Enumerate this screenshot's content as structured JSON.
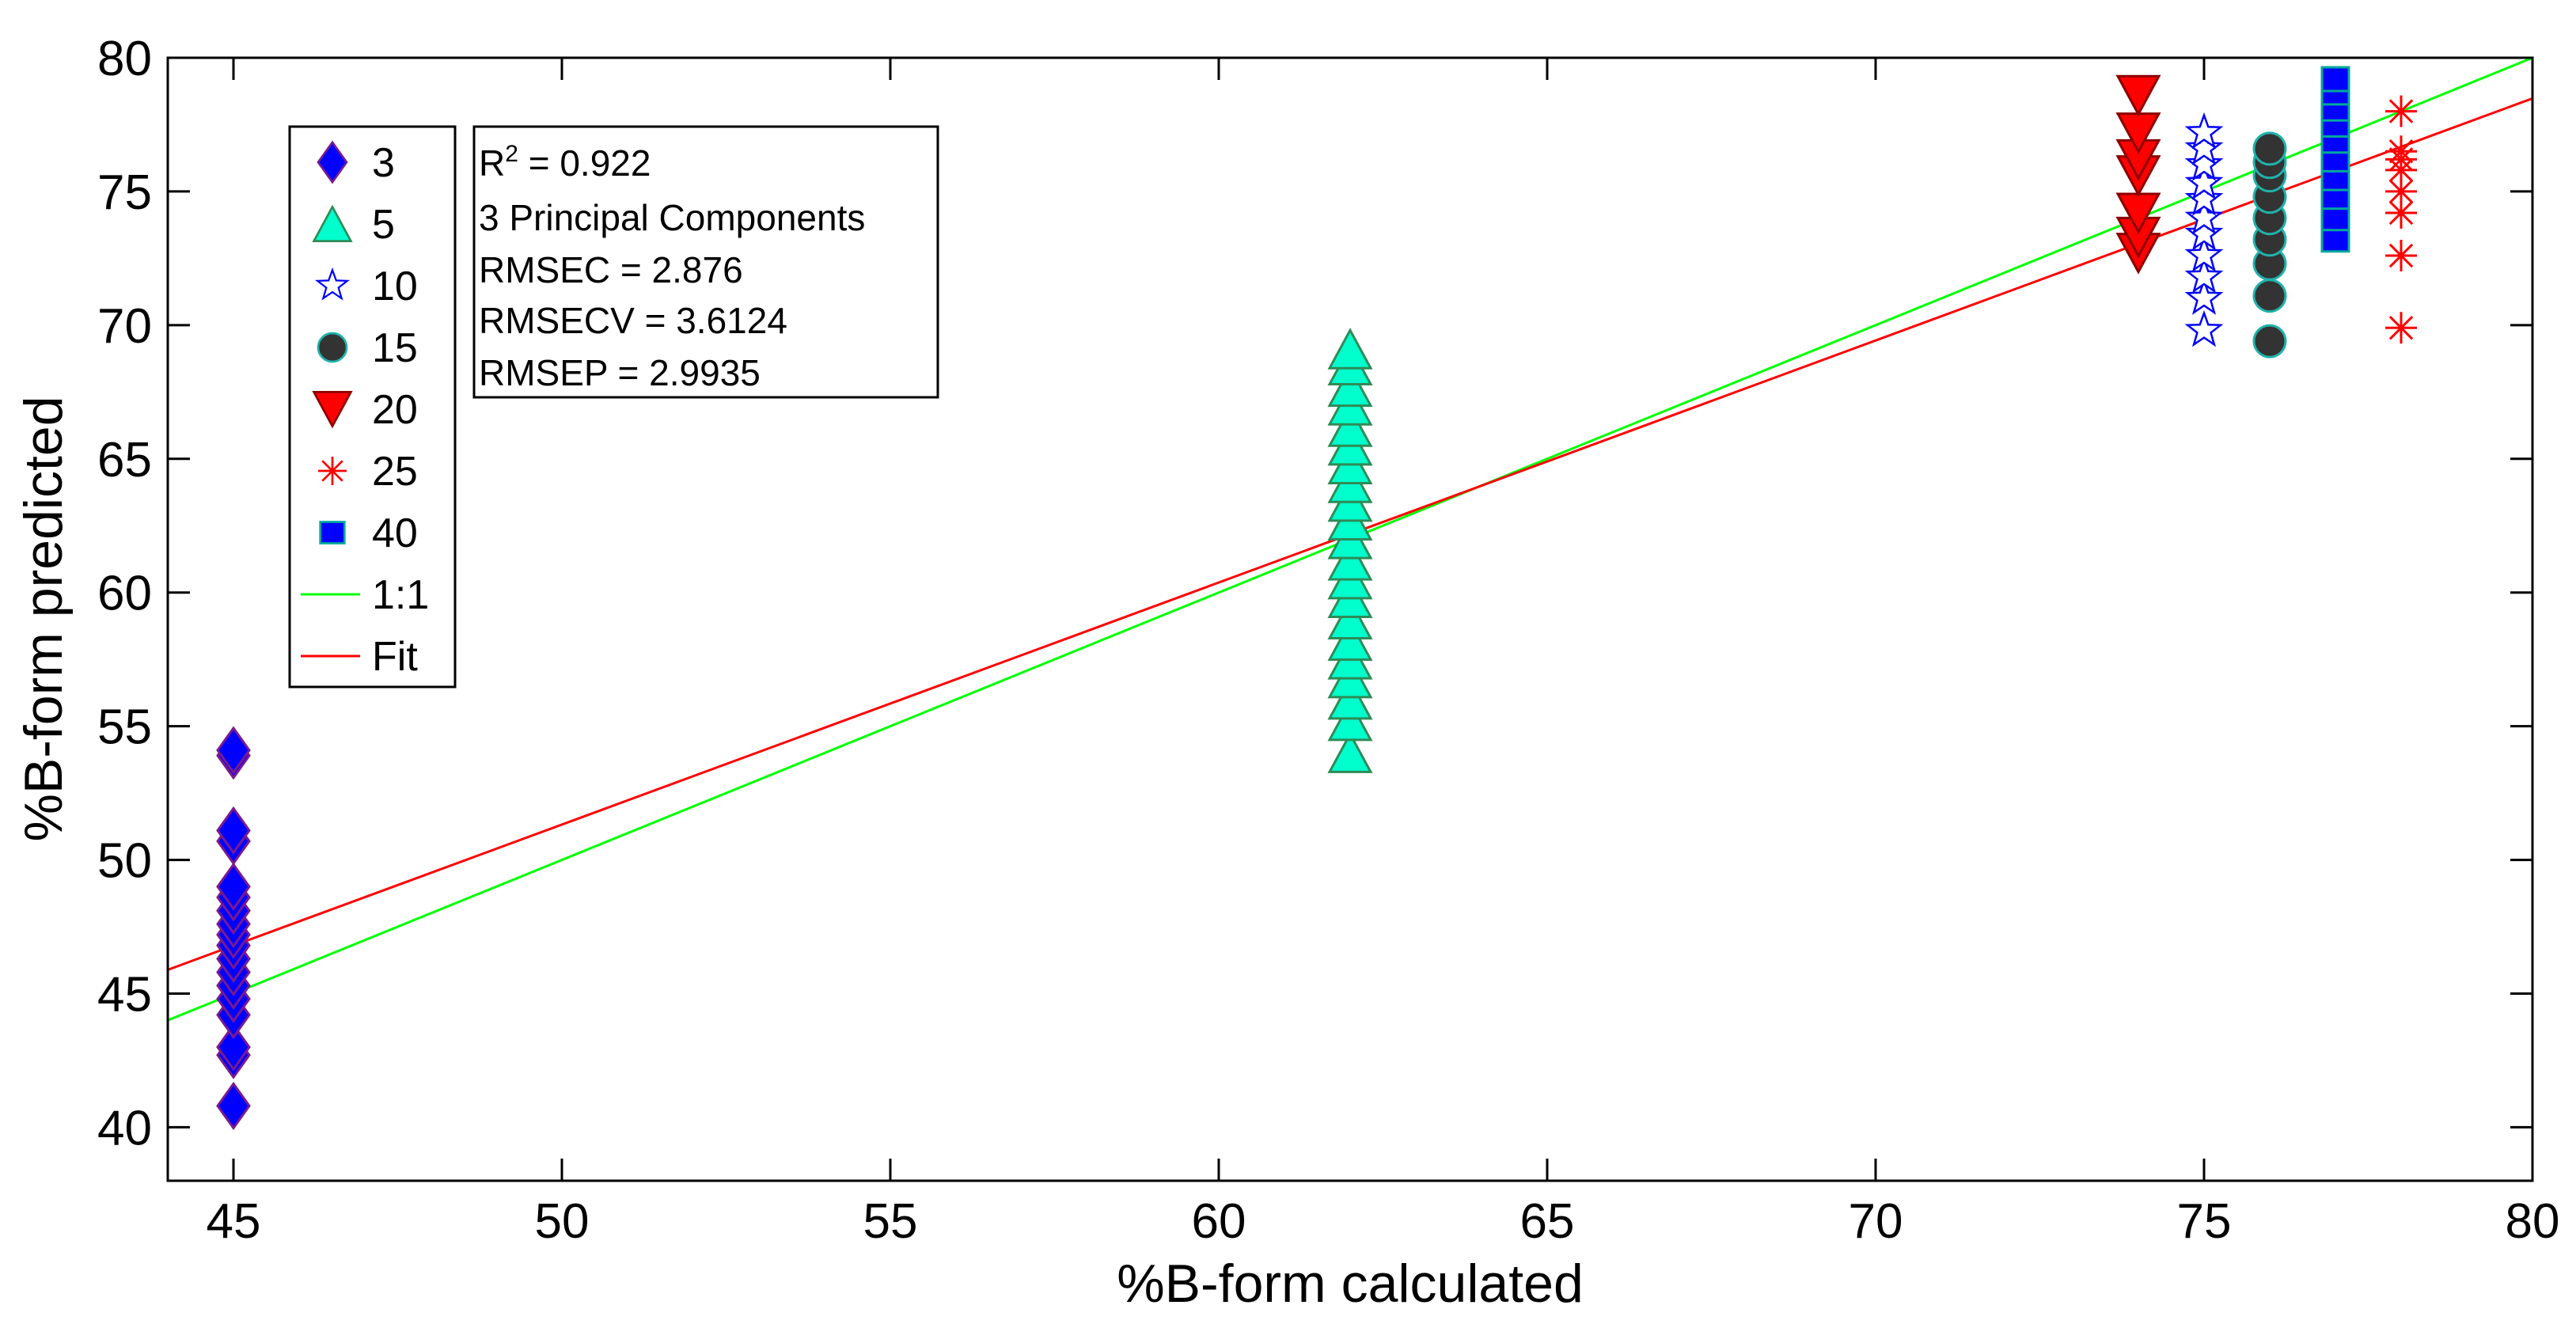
{
  "chart_data": {
    "type": "scatter",
    "title": "",
    "xlabel": "%B-form calculated",
    "ylabel": "%B-form predicted",
    "xlim": [
      44,
      80
    ],
    "ylim": [
      38,
      80
    ],
    "xticks": [
      45,
      50,
      55,
      60,
      65,
      70,
      75,
      80
    ],
    "yticks": [
      40,
      45,
      50,
      55,
      60,
      65,
      70,
      75,
      80
    ],
    "grid": false,
    "legend_position": "top-left",
    "series": [
      {
        "name": "3",
        "marker": "diamond",
        "color": "#0000ff",
        "edge": "#7a1a8f",
        "points": [
          [
            45,
            40.8
          ],
          [
            45,
            42.7
          ],
          [
            45,
            43.0
          ],
          [
            45,
            44.2
          ],
          [
            45,
            44.8
          ],
          [
            45,
            45.3
          ],
          [
            45,
            45.8
          ],
          [
            45,
            46.3
          ],
          [
            45,
            46.8
          ],
          [
            45,
            47.2
          ],
          [
            45,
            47.6
          ],
          [
            45,
            48.1
          ],
          [
            45,
            48.6
          ],
          [
            45,
            49.0
          ],
          [
            45,
            50.7
          ],
          [
            45,
            51.1
          ],
          [
            45,
            53.9
          ],
          [
            45,
            54.1
          ]
        ]
      },
      {
        "name": "5",
        "marker": "triangle-up",
        "color": "#00ffcc",
        "edge": "#2e8b57",
        "points": [
          [
            62,
            54.0
          ],
          [
            62,
            55.2
          ],
          [
            62,
            56.0
          ],
          [
            62,
            56.8
          ],
          [
            62,
            57.5
          ],
          [
            62,
            58.2
          ],
          [
            62,
            59.0
          ],
          [
            62,
            59.8
          ],
          [
            62,
            60.5
          ],
          [
            62,
            61.2
          ],
          [
            62,
            62.0
          ],
          [
            62,
            62.7
          ],
          [
            62,
            63.4
          ],
          [
            62,
            64.1
          ],
          [
            62,
            64.8
          ],
          [
            62,
            65.5
          ],
          [
            62,
            66.2
          ],
          [
            62,
            67.0
          ],
          [
            62,
            67.7
          ],
          [
            62,
            68.5
          ],
          [
            62,
            69.1
          ]
        ]
      },
      {
        "name": "10",
        "marker": "pentagram",
        "color": "#0000ff",
        "edge": "#0000ff",
        "points": [
          [
            75,
            69.8
          ],
          [
            75,
            71.0
          ],
          [
            75,
            71.8
          ],
          [
            75,
            72.6
          ],
          [
            75,
            73.4
          ],
          [
            75,
            74.0
          ],
          [
            75,
            74.7
          ],
          [
            75,
            75.3
          ],
          [
            75,
            76.0
          ],
          [
            75,
            76.6
          ],
          [
            75,
            77.2
          ]
        ]
      },
      {
        "name": "15",
        "marker": "circle",
        "color": "#333333",
        "edge": "#20b2aa",
        "points": [
          [
            76,
            69.4
          ],
          [
            76,
            71.1
          ],
          [
            76,
            72.3
          ],
          [
            76,
            73.2
          ],
          [
            76,
            74.0
          ],
          [
            76,
            74.8
          ],
          [
            76,
            75.6
          ],
          [
            76,
            76.1
          ],
          [
            76,
            76.6
          ]
        ]
      },
      {
        "name": "20",
        "marker": "triangle-down",
        "color": "#ff0000",
        "edge": "#8b0000",
        "points": [
          [
            74,
            72.7
          ],
          [
            74,
            73.3
          ],
          [
            74,
            74.2
          ],
          [
            74,
            75.6
          ],
          [
            74,
            76.2
          ],
          [
            74,
            77.2
          ],
          [
            74,
            78.6
          ]
        ]
      },
      {
        "name": "25",
        "marker": "asterisk",
        "color": "#ff0000",
        "edge": "#ff0000",
        "points": [
          [
            78,
            69.9
          ],
          [
            78,
            72.6
          ],
          [
            78,
            74.2
          ],
          [
            78,
            75.0
          ],
          [
            78,
            75.8
          ],
          [
            78,
            76.2
          ],
          [
            78,
            76.5
          ],
          [
            78,
            78.0
          ]
        ]
      },
      {
        "name": "40",
        "marker": "square",
        "color": "#0000ff",
        "edge": "#00aa99",
        "points": [
          [
            77,
            73.2
          ],
          [
            77,
            74.0
          ],
          [
            77,
            74.8
          ],
          [
            77,
            75.5
          ],
          [
            77,
            76.2
          ],
          [
            77,
            76.9
          ],
          [
            77,
            77.5
          ],
          [
            77,
            78.1
          ],
          [
            77,
            78.7
          ],
          [
            77,
            79.2
          ]
        ]
      }
    ],
    "lines": [
      {
        "name": "1:1",
        "color": "#00ff00",
        "x": [
          44,
          80
        ],
        "y": [
          44,
          80
        ]
      },
      {
        "name": "Fit",
        "color": "#ff0000",
        "x": [
          44,
          80
        ],
        "y": [
          45.89,
          78.48
        ]
      }
    ],
    "annotation": {
      "r2_prefix": "R",
      "r2_sup": "2",
      "r2_value": " = 0.922",
      "line2": "3 Principal Components",
      "line3": "RMSEC = 2.876",
      "line4": "RMSECV = 3.6124",
      "line5": "RMSEP = 2.9935"
    }
  }
}
